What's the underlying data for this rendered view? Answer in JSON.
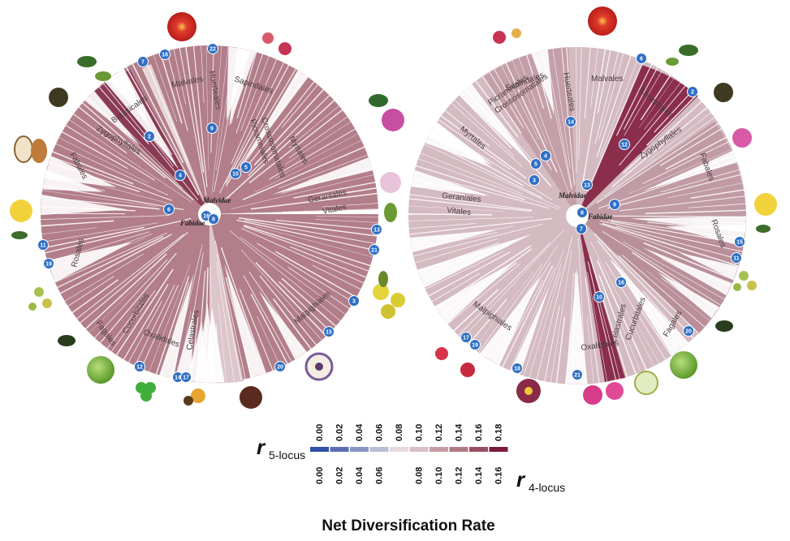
{
  "title": "Net Diversification Rate",
  "colors": {
    "low": "#2f4fa8",
    "mid": "#e6dade",
    "high": "#7a1c38",
    "fill_left": "#b07a86",
    "fill_right": "#d6bcc2",
    "line": "#ffffff",
    "badge": "#2f6fc4"
  },
  "scale": {
    "top_symbol": "r",
    "top_subscript": "5-locus",
    "top_ticks": [
      "0.00",
      "0.02",
      "0.04",
      "0.06",
      "0.08",
      "0.10",
      "0.12",
      "0.14",
      "0.16",
      "0.18"
    ],
    "bottom_symbol": "r",
    "bottom_subscript": "4-locus",
    "bottom_ticks": [
      "0.00",
      "0.02",
      "0.04",
      "0.06",
      "",
      "0.08",
      "0.10",
      "0.12",
      "0.14",
      "0.16"
    ],
    "swatches": [
      "#2f4fa8",
      "#5a6fb3",
      "#8a97c4",
      "#b7bed6",
      "#e6dade",
      "#d8bfc6",
      "#c79ca6",
      "#b27986",
      "#9a4e63",
      "#7a1c38"
    ]
  },
  "left_tree": {
    "center_labels": [
      "Malvidae",
      "Fabidae"
    ],
    "orders": [
      "Malvales",
      "Huerteales",
      "Sapindales",
      "Picramniales",
      "Crossosomatales",
      "Myrtales",
      "Geraniales",
      "Vitales",
      "Brassicales",
      "Zygophyllales",
      "Fabales",
      "Rosales",
      "Fagales",
      "Cucurbitales",
      "Oxalidales",
      "Celastrales",
      "Malpighiales"
    ],
    "nodes": [
      "18",
      "22",
      "7",
      "2",
      "9",
      "4",
      "10",
      "5",
      "6",
      "16",
      "8",
      "11",
      "19",
      "13",
      "21",
      "3",
      "15",
      "12",
      "14",
      "17",
      "20"
    ]
  },
  "right_tree": {
    "center_labels": [
      "Malvidae",
      "Fabidae"
    ],
    "orders": [
      "Sapindales",
      "Huerteales",
      "Malvales",
      "Brassicales",
      "Picramniales",
      "Crossosomatales",
      "Myrtales",
      "Zygophyllales",
      "Fabales",
      "Geraniales",
      "Vitales",
      "Rosales",
      "Malpighiales",
      "Oxalidales",
      "Celastrales",
      "Cucurbitales",
      "Fagales"
    ],
    "nodes": [
      "6",
      "2",
      "14",
      "12",
      "4",
      "5",
      "3",
      "13",
      "9",
      "8",
      "7",
      "15",
      "11",
      "16",
      "10",
      "17",
      "19",
      "18",
      "21",
      "20"
    ]
  }
}
